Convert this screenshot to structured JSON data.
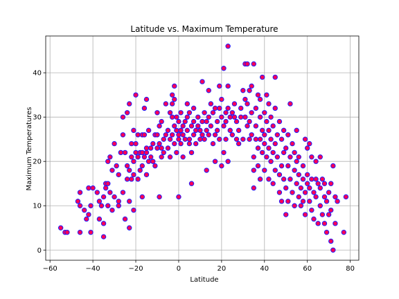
{
  "chart_data": {
    "type": "scatter",
    "title": "Latitude vs. Maximum Temperature",
    "xlabel": "Latitude",
    "ylabel": "Maximum Temperatures",
    "xlim": [
      -62,
      84
    ],
    "ylim": [
      -2.3,
      48.3
    ],
    "xticks": [
      -60,
      -40,
      -20,
      0,
      20,
      40,
      60,
      80
    ],
    "yticks": [
      0,
      10,
      20,
      30,
      40
    ],
    "grid": true,
    "marker_fill": "#ff0055",
    "marker_edge": "#1a1aff",
    "points": [
      [
        -55,
        5
      ],
      [
        -53,
        4
      ],
      [
        -52,
        4
      ],
      [
        -47,
        11
      ],
      [
        -46,
        10
      ],
      [
        -46,
        13
      ],
      [
        -46,
        4
      ],
      [
        -44,
        9
      ],
      [
        -43,
        7
      ],
      [
        -42,
        8
      ],
      [
        -42,
        14
      ],
      [
        -41,
        4
      ],
      [
        -41,
        10
      ],
      [
        -40,
        14
      ],
      [
        -38,
        13
      ],
      [
        -37,
        11
      ],
      [
        -37,
        7
      ],
      [
        -36,
        10
      ],
      [
        -35,
        12
      ],
      [
        -35,
        3
      ],
      [
        -35,
        6
      ],
      [
        -34,
        15
      ],
      [
        -34,
        14
      ],
      [
        -33,
        15
      ],
      [
        -33,
        20
      ],
      [
        -33,
        10
      ],
      [
        -32,
        21
      ],
      [
        -32,
        13
      ],
      [
        -31,
        9
      ],
      [
        -31,
        18
      ],
      [
        -30,
        24
      ],
      [
        -30,
        12
      ],
      [
        -29,
        19
      ],
      [
        -28,
        17
      ],
      [
        -28,
        11
      ],
      [
        -28,
        10
      ],
      [
        -27,
        22
      ],
      [
        -26,
        26
      ],
      [
        -26,
        30
      ],
      [
        -26,
        13
      ],
      [
        -25,
        7
      ],
      [
        -25,
        22
      ],
      [
        -24,
        19
      ],
      [
        -24,
        31
      ],
      [
        -24,
        16
      ],
      [
        -23,
        33
      ],
      [
        -23,
        5
      ],
      [
        -23,
        11
      ],
      [
        -23,
        18
      ],
      [
        -22,
        24
      ],
      [
        -22,
        16
      ],
      [
        -22,
        21
      ],
      [
        -21,
        17
      ],
      [
        -21,
        27
      ],
      [
        -21,
        9
      ],
      [
        -21,
        20
      ],
      [
        -20,
        24
      ],
      [
        -20,
        35
      ],
      [
        -20,
        22
      ],
      [
        -19,
        21
      ],
      [
        -19,
        16
      ],
      [
        -19,
        26
      ],
      [
        -18,
        22
      ],
      [
        -18,
        18
      ],
      [
        -17,
        22
      ],
      [
        -17,
        26
      ],
      [
        -17,
        12
      ],
      [
        -17,
        19
      ],
      [
        -16,
        21
      ],
      [
        -16,
        32
      ],
      [
        -16,
        26
      ],
      [
        -15,
        34
      ],
      [
        -15,
        23
      ],
      [
        -15,
        22
      ],
      [
        -15,
        17
      ],
      [
        -14,
        20
      ],
      [
        -14,
        27
      ],
      [
        -13,
        23
      ],
      [
        -13,
        21
      ],
      [
        -12,
        24
      ],
      [
        -12,
        20
      ],
      [
        -11,
        26
      ],
      [
        -11,
        19
      ],
      [
        -10,
        31
      ],
      [
        -10,
        26
      ],
      [
        -10,
        23
      ],
      [
        -9,
        28
      ],
      [
        -9,
        12
      ],
      [
        -9,
        24
      ],
      [
        -8,
        21
      ],
      [
        -8,
        29
      ],
      [
        -8,
        23
      ],
      [
        -7,
        25
      ],
      [
        -7,
        22
      ],
      [
        -6,
        26
      ],
      [
        -6,
        33
      ],
      [
        -5,
        27
      ],
      [
        -5,
        23
      ],
      [
        -4,
        31
      ],
      [
        -4,
        25
      ],
      [
        -4,
        21
      ],
      [
        -3,
        33
      ],
      [
        -3,
        35
      ],
      [
        -3,
        30
      ],
      [
        -3,
        26
      ],
      [
        -2,
        37
      ],
      [
        -2,
        34
      ],
      [
        -2,
        28
      ],
      [
        -2,
        24
      ],
      [
        -1,
        30
      ],
      [
        -1,
        27
      ],
      [
        -1,
        22
      ],
      [
        0,
        12
      ],
      [
        0,
        26
      ],
      [
        0,
        29
      ],
      [
        0,
        25
      ],
      [
        1,
        31
      ],
      [
        1,
        27
      ],
      [
        1,
        24
      ],
      [
        2,
        28
      ],
      [
        2,
        26
      ],
      [
        2,
        21
      ],
      [
        3,
        25
      ],
      [
        3,
        29
      ],
      [
        4,
        33
      ],
      [
        4,
        30
      ],
      [
        4,
        27
      ],
      [
        5,
        31
      ],
      [
        5,
        25
      ],
      [
        5,
        24
      ],
      [
        6,
        22
      ],
      [
        6,
        28
      ],
      [
        6,
        15
      ],
      [
        7,
        32
      ],
      [
        7,
        29
      ],
      [
        7,
        26
      ],
      [
        8,
        27
      ],
      [
        8,
        24
      ],
      [
        9,
        30
      ],
      [
        9,
        28
      ],
      [
        10,
        25
      ],
      [
        10,
        27
      ],
      [
        11,
        29
      ],
      [
        11,
        38
      ],
      [
        11,
        26
      ],
      [
        12,
        31
      ],
      [
        12,
        25
      ],
      [
        13,
        27
      ],
      [
        13,
        29
      ],
      [
        13,
        18
      ],
      [
        14,
        30
      ],
      [
        14,
        36
      ],
      [
        14,
        26
      ],
      [
        15,
        33
      ],
      [
        15,
        28
      ],
      [
        16,
        31
      ],
      [
        16,
        24
      ],
      [
        17,
        26
      ],
      [
        17,
        32
      ],
      [
        17,
        20
      ],
      [
        18,
        29
      ],
      [
        18,
        27
      ],
      [
        19,
        32
      ],
      [
        19,
        37
      ],
      [
        19,
        25
      ],
      [
        20,
        19
      ],
      [
        20,
        30
      ],
      [
        20,
        34
      ],
      [
        21,
        41
      ],
      [
        21,
        28
      ],
      [
        21,
        22
      ],
      [
        22,
        31
      ],
      [
        22,
        29
      ],
      [
        22,
        25
      ],
      [
        23,
        46
      ],
      [
        23,
        37
      ],
      [
        23,
        32
      ],
      [
        23,
        20
      ],
      [
        24,
        27
      ],
      [
        24,
        30
      ],
      [
        25,
        31
      ],
      [
        25,
        26
      ],
      [
        26,
        30
      ],
      [
        26,
        33
      ],
      [
        27,
        29
      ],
      [
        27,
        25
      ],
      [
        28,
        24
      ],
      [
        28,
        27
      ],
      [
        29,
        32
      ],
      [
        29,
        30
      ],
      [
        30,
        36
      ],
      [
        30,
        25
      ],
      [
        31,
        42
      ],
      [
        31,
        30
      ],
      [
        31,
        34
      ],
      [
        32,
        28
      ],
      [
        32,
        42
      ],
      [
        32,
        33
      ],
      [
        33,
        29
      ],
      [
        33,
        25
      ],
      [
        33,
        36
      ],
      [
        34,
        31
      ],
      [
        34,
        37
      ],
      [
        34,
        26
      ],
      [
        35,
        42
      ],
      [
        35,
        21
      ],
      [
        35,
        14
      ],
      [
        35,
        18
      ],
      [
        36,
        25
      ],
      [
        36,
        32
      ],
      [
        36,
        28
      ],
      [
        37,
        35
      ],
      [
        37,
        23
      ],
      [
        37,
        19
      ],
      [
        38,
        30
      ],
      [
        38,
        34
      ],
      [
        38,
        25
      ],
      [
        38,
        16
      ],
      [
        39,
        39
      ],
      [
        39,
        27
      ],
      [
        39,
        22
      ],
      [
        40,
        31
      ],
      [
        40,
        26
      ],
      [
        40,
        24
      ],
      [
        40,
        18
      ],
      [
        41,
        35
      ],
      [
        41,
        29
      ],
      [
        41,
        21
      ],
      [
        42,
        27
      ],
      [
        42,
        33
      ],
      [
        42,
        23
      ],
      [
        42,
        16
      ],
      [
        43,
        30
      ],
      [
        43,
        25
      ],
      [
        43,
        20
      ],
      [
        44,
        28
      ],
      [
        44,
        22
      ],
      [
        44,
        15
      ],
      [
        45,
        39
      ],
      [
        45,
        32
      ],
      [
        45,
        24
      ],
      [
        45,
        18
      ],
      [
        46,
        26
      ],
      [
        46,
        21
      ],
      [
        47,
        29
      ],
      [
        47,
        17
      ],
      [
        47,
        13
      ],
      [
        48,
        25
      ],
      [
        48,
        19
      ],
      [
        48,
        11
      ],
      [
        49,
        27
      ],
      [
        49,
        22
      ],
      [
        49,
        16
      ],
      [
        50,
        23
      ],
      [
        50,
        8
      ],
      [
        50,
        14
      ],
      [
        51,
        26
      ],
      [
        51,
        19
      ],
      [
        51,
        11
      ],
      [
        52,
        33
      ],
      [
        52,
        21
      ],
      [
        52,
        16
      ],
      [
        53,
        24
      ],
      [
        53,
        13
      ],
      [
        54,
        22
      ],
      [
        54,
        18
      ],
      [
        54,
        10
      ],
      [
        55,
        27
      ],
      [
        55,
        20
      ],
      [
        55,
        15
      ],
      [
        56,
        17
      ],
      [
        56,
        12
      ],
      [
        56,
        21
      ],
      [
        57,
        14
      ],
      [
        57,
        10
      ],
      [
        58,
        19
      ],
      [
        58,
        16
      ],
      [
        58,
        11
      ],
      [
        59,
        25
      ],
      [
        59,
        13
      ],
      [
        59,
        8
      ],
      [
        60,
        23
      ],
      [
        60,
        15
      ],
      [
        60,
        17
      ],
      [
        61,
        11
      ],
      [
        61,
        14
      ],
      [
        61,
        24
      ],
      [
        62,
        21
      ],
      [
        62,
        16
      ],
      [
        62,
        9
      ],
      [
        63,
        13
      ],
      [
        63,
        7
      ],
      [
        64,
        20
      ],
      [
        64,
        12
      ],
      [
        64,
        16
      ],
      [
        65,
        15
      ],
      [
        65,
        6
      ],
      [
        66,
        21
      ],
      [
        66,
        10
      ],
      [
        66,
        14
      ],
      [
        67,
        16
      ],
      [
        67,
        8
      ],
      [
        68,
        12
      ],
      [
        68,
        6
      ],
      [
        68,
        15
      ],
      [
        69,
        11
      ],
      [
        69,
        4
      ],
      [
        70,
        13
      ],
      [
        70,
        8
      ],
      [
        71,
        15
      ],
      [
        71,
        2
      ],
      [
        71,
        9
      ],
      [
        72,
        0
      ],
      [
        72,
        19
      ],
      [
        73,
        12
      ],
      [
        73,
        6
      ],
      [
        74,
        11
      ],
      [
        77,
        4
      ],
      [
        78,
        12
      ]
    ]
  }
}
